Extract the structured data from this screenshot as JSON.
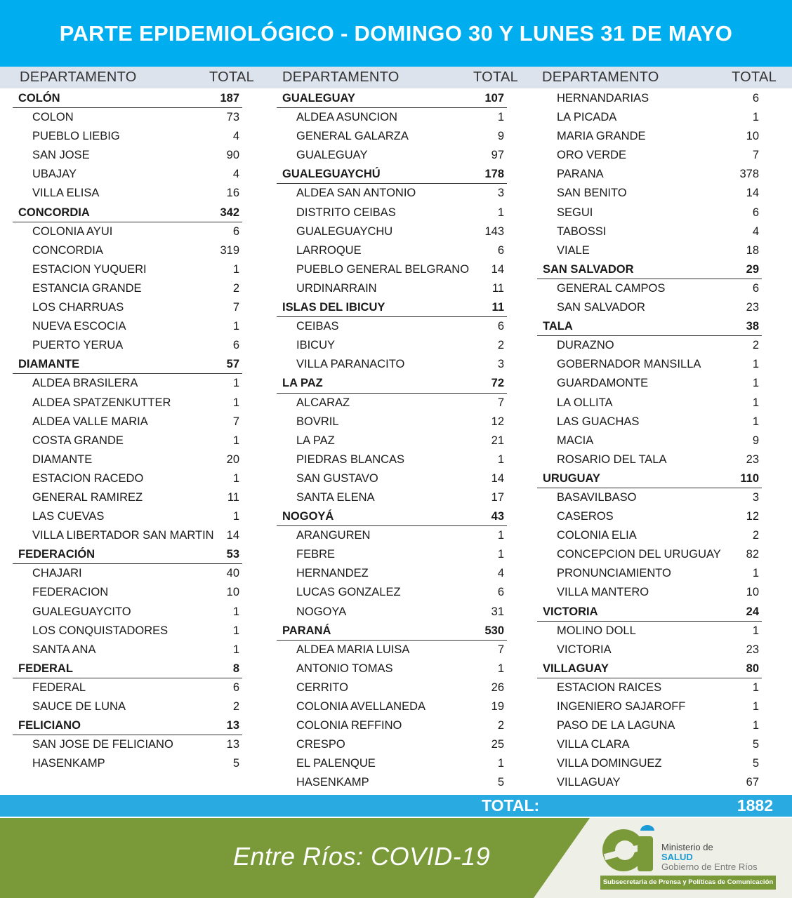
{
  "title": "PARTE EPIDEMIOLÓGICO - DOMINGO 30 Y LUNES 31 DE MAYO",
  "column_headers": {
    "department": "DEPARTAMENTO",
    "total": "TOTAL"
  },
  "columns": [
    [
      {
        "name": "COLÓN",
        "total": "187",
        "dept": true
      },
      {
        "name": "COLON",
        "total": "73"
      },
      {
        "name": "PUEBLO LIEBIG",
        "total": "4"
      },
      {
        "name": "SAN JOSE",
        "total": "90"
      },
      {
        "name": "UBAJAY",
        "total": "4"
      },
      {
        "name": "VILLA ELISA",
        "total": "16"
      },
      {
        "name": "CONCORDIA",
        "total": "342",
        "dept": true
      },
      {
        "name": "COLONIA AYUI",
        "total": "6"
      },
      {
        "name": "CONCORDIA",
        "total": "319"
      },
      {
        "name": "ESTACION YUQUERI",
        "total": "1"
      },
      {
        "name": "ESTANCIA GRANDE",
        "total": "2"
      },
      {
        "name": "LOS CHARRUAS",
        "total": "7"
      },
      {
        "name": "NUEVA ESCOCIA",
        "total": "1"
      },
      {
        "name": "PUERTO YERUA",
        "total": "6"
      },
      {
        "name": "DIAMANTE",
        "total": "57",
        "dept": true
      },
      {
        "name": "ALDEA BRASILERA",
        "total": "1"
      },
      {
        "name": "ALDEA SPATZENKUTTER",
        "total": "1"
      },
      {
        "name": "ALDEA VALLE MARIA",
        "total": "7"
      },
      {
        "name": "COSTA GRANDE",
        "total": "1"
      },
      {
        "name": "DIAMANTE",
        "total": "20"
      },
      {
        "name": "ESTACION RACEDO",
        "total": "1"
      },
      {
        "name": "GENERAL RAMIREZ",
        "total": "11"
      },
      {
        "name": "LAS CUEVAS",
        "total": "1"
      },
      {
        "name": "VILLA LIBERTADOR SAN MARTIN",
        "total": "14"
      },
      {
        "name": "FEDERACIÓN",
        "total": "53",
        "dept": true
      },
      {
        "name": "CHAJARI",
        "total": "40"
      },
      {
        "name": "FEDERACION",
        "total": "10"
      },
      {
        "name": "GUALEGUAYCITO",
        "total": "1"
      },
      {
        "name": "LOS CONQUISTADORES",
        "total": "1"
      },
      {
        "name": "SANTA ANA",
        "total": "1"
      },
      {
        "name": "FEDERAL",
        "total": "8",
        "dept": true
      },
      {
        "name": "FEDERAL",
        "total": "6"
      },
      {
        "name": "SAUCE DE LUNA",
        "total": "2"
      },
      {
        "name": "FELICIANO",
        "total": "13",
        "dept": true
      },
      {
        "name": "SAN JOSE DE FELICIANO",
        "total": "13"
      },
      {
        "name": "HASENKAMP",
        "total": "5"
      }
    ],
    [
      {
        "name": "GUALEGUAY",
        "total": "107",
        "dept": true
      },
      {
        "name": "ALDEA ASUNCION",
        "total": "1"
      },
      {
        "name": "GENERAL GALARZA",
        "total": "9"
      },
      {
        "name": "GUALEGUAY",
        "total": "97"
      },
      {
        "name": "GUALEGUAYCHÚ",
        "total": "178",
        "dept": true
      },
      {
        "name": "ALDEA SAN ANTONIO",
        "total": "3"
      },
      {
        "name": "DISTRITO CEIBAS",
        "total": "1"
      },
      {
        "name": "GUALEGUAYCHU",
        "total": "143"
      },
      {
        "name": "LARROQUE",
        "total": "6"
      },
      {
        "name": "PUEBLO GENERAL BELGRANO",
        "total": "14"
      },
      {
        "name": "URDINARRAIN",
        "total": "11"
      },
      {
        "name": "ISLAS DEL IBICUY",
        "total": "11",
        "dept": true
      },
      {
        "name": "CEIBAS",
        "total": "6"
      },
      {
        "name": "IBICUY",
        "total": "2"
      },
      {
        "name": "VILLA PARANACITO",
        "total": "3"
      },
      {
        "name": "LA PAZ",
        "total": "72",
        "dept": true
      },
      {
        "name": "ALCARAZ",
        "total": "7"
      },
      {
        "name": "BOVRIL",
        "total": "12"
      },
      {
        "name": "LA PAZ",
        "total": "21"
      },
      {
        "name": "PIEDRAS BLANCAS",
        "total": "1"
      },
      {
        "name": "SAN GUSTAVO",
        "total": "14"
      },
      {
        "name": "SANTA ELENA",
        "total": "17"
      },
      {
        "name": "NOGOYÁ",
        "total": "43",
        "dept": true
      },
      {
        "name": "ARANGUREN",
        "total": "1"
      },
      {
        "name": "FEBRE",
        "total": "1"
      },
      {
        "name": "HERNANDEZ",
        "total": "4"
      },
      {
        "name": "LUCAS GONZALEZ",
        "total": "6"
      },
      {
        "name": "NOGOYA",
        "total": "31"
      },
      {
        "name": "PARANÁ",
        "total": "530",
        "dept": true
      },
      {
        "name": "ALDEA MARIA LUISA",
        "total": "7"
      },
      {
        "name": "ANTONIO TOMAS",
        "total": "1"
      },
      {
        "name": "CERRITO",
        "total": "26"
      },
      {
        "name": "COLONIA AVELLANEDA",
        "total": "19"
      },
      {
        "name": "COLONIA REFFINO",
        "total": "2"
      },
      {
        "name": "CRESPO",
        "total": "25"
      },
      {
        "name": "EL PALENQUE",
        "total": "1"
      },
      {
        "name": "HASENKAMP",
        "total": "5"
      }
    ],
    [
      {
        "name": "HERNANDARIAS",
        "total": "6"
      },
      {
        "name": "LA PICADA",
        "total": "1"
      },
      {
        "name": "MARIA GRANDE",
        "total": "10"
      },
      {
        "name": "ORO VERDE",
        "total": "7"
      },
      {
        "name": "PARANA",
        "total": "378"
      },
      {
        "name": "SAN BENITO",
        "total": "14"
      },
      {
        "name": "SEGUI",
        "total": "6"
      },
      {
        "name": "TABOSSI",
        "total": "4"
      },
      {
        "name": "VIALE",
        "total": "18"
      },
      {
        "name": "SAN SALVADOR",
        "total": "29",
        "dept": true
      },
      {
        "name": "GENERAL CAMPOS",
        "total": "6"
      },
      {
        "name": "SAN SALVADOR",
        "total": "23"
      },
      {
        "name": "TALA",
        "total": "38",
        "dept": true
      },
      {
        "name": "DURAZNO",
        "total": "2"
      },
      {
        "name": "GOBERNADOR MANSILLA",
        "total": "1"
      },
      {
        "name": "GUARDAMONTE",
        "total": "1"
      },
      {
        "name": "LA OLLITA",
        "total": "1"
      },
      {
        "name": "LAS GUACHAS",
        "total": "1"
      },
      {
        "name": "MACIA",
        "total": "9"
      },
      {
        "name": "ROSARIO DEL TALA",
        "total": "23"
      },
      {
        "name": "URUGUAY",
        "total": "110",
        "dept": true
      },
      {
        "name": "BASAVILBASO",
        "total": "3"
      },
      {
        "name": "CASEROS",
        "total": "12"
      },
      {
        "name": "COLONIA ELIA",
        "total": "2"
      },
      {
        "name": "CONCEPCION DEL URUGUAY",
        "total": "82"
      },
      {
        "name": "PRONUNCIAMIENTO",
        "total": "1"
      },
      {
        "name": "VILLA MANTERO",
        "total": "10"
      },
      {
        "name": "VICTORIA",
        "total": "24",
        "dept": true
      },
      {
        "name": "MOLINO DOLL",
        "total": "1"
      },
      {
        "name": "VICTORIA",
        "total": "23"
      },
      {
        "name": "VILLAGUAY",
        "total": "80",
        "dept": true
      },
      {
        "name": "ESTACION RAICES",
        "total": "1"
      },
      {
        "name": "INGENIERO SAJAROFF",
        "total": "1"
      },
      {
        "name": "PASO DE LA LAGUNA",
        "total": "1"
      },
      {
        "name": "VILLA CLARA",
        "total": "5"
      },
      {
        "name": "VILLA DOMINGUEZ",
        "total": "5"
      },
      {
        "name": "VILLAGUAY",
        "total": "67"
      }
    ]
  ],
  "total": {
    "label": "TOTAL:",
    "value": "1882"
  },
  "footer": {
    "slogan": "Entre Ríos: COVID-19",
    "logo_text": "er",
    "ministry_line1": "Ministerio de",
    "ministry_line2": "SALUD",
    "ministry_line3": "Gobierno de Entre Ríos",
    "subsecretaria": "Subsecretaria de Prensa y Políticas de Comunicación"
  },
  "colors": {
    "header_blue": "#00aeef",
    "total_blue": "#29abe2",
    "green": "#7a9a3a",
    "salud_blue": "#1b9ad6"
  }
}
